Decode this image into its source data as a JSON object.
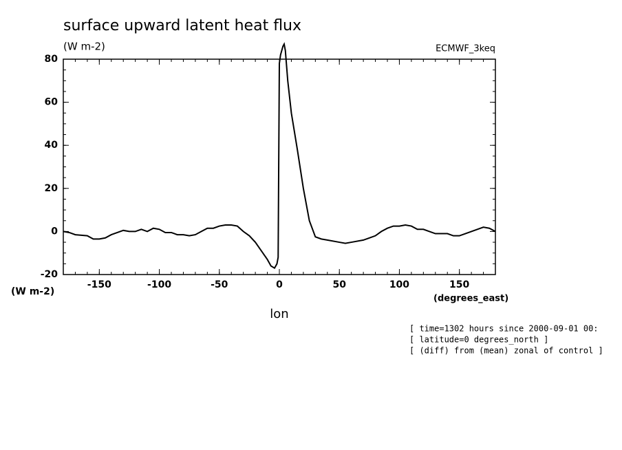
{
  "chart_data": {
    "type": "line",
    "title": "surface upward latent heat flux",
    "y_units_top": "(W m-2)",
    "dataset": "ECMWF_3keq",
    "y_units_bottom": "(W m-2)",
    "x_units": "(degrees_east)",
    "xlabel": "lon",
    "annotations": [
      "[ time=1302 hours since 2000-09-01 00:",
      "[ latitude=0 degrees_north ]",
      "[ (diff) from (mean) zonal of control ]"
    ],
    "xlim": [
      -180,
      180
    ],
    "ylim": [
      -20,
      80
    ],
    "xticks": [
      -150,
      -100,
      -50,
      0,
      50,
      100,
      150
    ],
    "yticks": [
      -20,
      0,
      20,
      40,
      60,
      80
    ],
    "x": [
      -180,
      -175,
      -170,
      -160,
      -155,
      -150,
      -145,
      -140,
      -135,
      -130,
      -125,
      -120,
      -115,
      -110,
      -105,
      -100,
      -95,
      -90,
      -85,
      -80,
      -75,
      -70,
      -65,
      -60,
      -55,
      -50,
      -45,
      -40,
      -35,
      -30,
      -25,
      -20,
      -15,
      -10,
      -7,
      -4,
      -2,
      -1,
      0,
      1,
      3,
      4,
      5,
      7,
      10,
      15,
      20,
      25,
      30,
      35,
      40,
      50,
      55,
      60,
      70,
      75,
      80,
      85,
      90,
      95,
      100,
      105,
      110,
      115,
      120,
      125,
      130,
      140,
      145,
      150,
      155,
      160,
      165,
      170,
      175,
      180
    ],
    "series": [
      {
        "name": "flux",
        "color": "#000000",
        "values": [
          0,
          -0.5,
          -1.5,
          -2,
          -3.5,
          -3.5,
          -3,
          -1.5,
          -0.5,
          0.5,
          0,
          0,
          1,
          0,
          1.5,
          1,
          -0.5,
          -0.5,
          -1.5,
          -1.5,
          -2,
          -1.5,
          0,
          1.5,
          1.5,
          2.5,
          3,
          3,
          2.5,
          0,
          -2,
          -5,
          -9,
          -13,
          -16,
          -17,
          -15,
          -12,
          78,
          82,
          86,
          87,
          84,
          70,
          55,
          38,
          20,
          5,
          -2.5,
          -3.5,
          -4,
          -5,
          -5.5,
          -5,
          -4,
          -3,
          -2,
          0,
          1.5,
          2.5,
          2.5,
          3,
          2.5,
          1,
          1,
          0,
          -1,
          -1,
          -2,
          -2,
          -1,
          0,
          1,
          2,
          1.5,
          0
        ]
      }
    ]
  }
}
